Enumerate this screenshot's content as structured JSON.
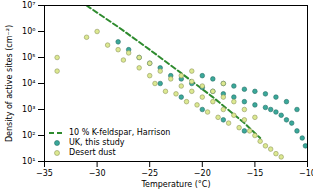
{
  "chart_data": {
    "type": "scatter",
    "xlabel": "Temperature (°C)",
    "ylabel": "Density of active sites (cm⁻²)",
    "log": "y",
    "grid": false,
    "legend": "lower left",
    "xlim": [
      -35,
      -10
    ],
    "xticks": [
      -35,
      -30,
      -25,
      -20,
      -15,
      -10
    ],
    "ylim": [
      10,
      10000000
    ],
    "yticks": [
      {
        "value": 10,
        "label": "10¹"
      },
      {
        "value": 100,
        "label": "10²"
      },
      {
        "value": 1000,
        "label": "10³"
      },
      {
        "value": 10000,
        "label": "10⁴"
      },
      {
        "value": 100000,
        "label": "10⁵"
      },
      {
        "value": 1000000,
        "label": "10⁶"
      },
      {
        "value": 10000000,
        "label": "10⁷"
      }
    ],
    "series": [
      {
        "name": "10 % K-feldspar, Harrison",
        "type": "line",
        "line_style": "dashed",
        "color": "#2e8b2e",
        "x": [
          -31,
          -28,
          -25,
          -22,
          -19,
          -16,
          -14.5
        ],
        "values": [
          10000000,
          1500000,
          200000,
          25000,
          3000,
          300,
          80
        ]
      },
      {
        "name": "UK, this study",
        "type": "scatter",
        "marker": "circle",
        "color": "#3aa89a",
        "x": [
          -28,
          -27,
          -26,
          -25,
          -24,
          -23,
          -22,
          -21,
          -20,
          -19,
          -18,
          -17,
          -16,
          -15,
          -14,
          -13.5,
          -13,
          -12.5,
          -12,
          -11.5,
          -11,
          -10.5,
          -10.2,
          -20,
          -19,
          -18,
          -17,
          -16,
          -15,
          -14,
          -13,
          -12,
          -11,
          -24,
          -22,
          -20,
          -18,
          -16
        ],
        "values": [
          400000,
          200000,
          100000,
          60000,
          40000,
          20000,
          15000,
          10000,
          7000,
          5000,
          4000,
          3000,
          2000,
          1500,
          1200,
          1000,
          800,
          600,
          400,
          300,
          150,
          80,
          40,
          20000,
          15000,
          10000,
          8000,
          6000,
          5000,
          4000,
          3000,
          2000,
          1000,
          10000,
          3000,
          1000,
          400,
          150
        ]
      },
      {
        "name": "Desert dust",
        "type": "scatter",
        "marker": "circle",
        "color": "#dce890",
        "x": [
          -33.8,
          -33.8,
          -31,
          -30,
          -29,
          -28,
          -27.5,
          -27,
          -26,
          -26,
          -25,
          -25,
          -24.5,
          -24,
          -23.5,
          -23,
          -22.5,
          -22,
          -22,
          -21.5,
          -21,
          -21,
          -20.5,
          -20,
          -20,
          -19.5,
          -19,
          -19,
          -18.5,
          -18,
          -18,
          -17.5,
          -17,
          -17,
          -16.5,
          -16,
          -16,
          -15.5,
          -15,
          -15,
          -14.5,
          -14,
          -13.5,
          -13,
          -12.5,
          -21,
          -18
        ],
        "values": [
          100000,
          30000,
          600000,
          1000000,
          300000,
          200000,
          80000,
          150000,
          40000,
          100000,
          20000,
          60000,
          10000,
          30000,
          5000,
          15000,
          4000,
          8000,
          20000,
          2000,
          5000,
          12000,
          1500,
          3000,
          8000,
          800,
          2000,
          5000,
          500,
          1000,
          3000,
          300,
          600,
          2000,
          200,
          400,
          1000,
          150,
          100,
          500,
          60,
          40,
          30,
          20,
          15,
          30000,
          10000
        ]
      }
    ]
  }
}
